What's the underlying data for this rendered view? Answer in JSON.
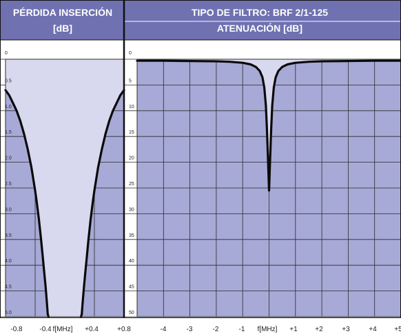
{
  "colors": {
    "header_bg": "#6f71b1",
    "plot_bg": "#a7a9d6",
    "passband": "#d8d9ee",
    "grid": "#2b2b2b",
    "curve": "#0a0a0a",
    "header_text": "#ffffff"
  },
  "headers": {
    "left_title_1": "PÉRDIDA INSERCIÓN",
    "left_title_2": "[dB]",
    "right_title_1": "TIPO DE FILTRO: BRF 2/1-125",
    "right_title_2": "ATENUACIÓN [dB]"
  },
  "chart_data": [
    {
      "type": "line",
      "title": "PÉRDIDA INSERCIÓN [dB]",
      "xlabel": "f[MHz]",
      "ylabel": "",
      "xlim": [
        -0.8,
        0.8
      ],
      "ylim": [
        0,
        5.0
      ],
      "y_inverted": true,
      "grid": true,
      "y_tick_labels": [
        "0",
        "0.5",
        "1.0",
        "1.5",
        "2.0",
        "2.5",
        "3.0",
        "3.5",
        "4.0",
        "4.5",
        "5.0"
      ],
      "x_tick_labels": [
        "-0.8",
        "-0.4",
        "f[MHz]",
        "+0.4",
        "+0.8"
      ],
      "series": [
        {
          "x": [
            -0.8,
            -0.75,
            -0.7,
            -0.65,
            -0.6,
            -0.55,
            -0.5,
            -0.45,
            -0.4,
            -0.38,
            -0.35,
            -0.32,
            -0.3,
            -0.28,
            -0.26,
            -0.24,
            -0.23,
            -0.22
          ],
          "y": [
            0.6,
            0.7,
            0.85,
            1.0,
            1.2,
            1.45,
            1.75,
            2.1,
            2.55,
            2.75,
            3.1,
            3.5,
            3.8,
            4.1,
            4.4,
            4.75,
            4.95,
            5.0
          ]
        },
        {
          "x": [
            0.22,
            0.23,
            0.24,
            0.26,
            0.28,
            0.3,
            0.32,
            0.35,
            0.38,
            0.4,
            0.45,
            0.5,
            0.55,
            0.6,
            0.65,
            0.7,
            0.75,
            0.8
          ],
          "y": [
            5.0,
            4.95,
            4.75,
            4.4,
            4.1,
            3.8,
            3.5,
            3.1,
            2.75,
            2.55,
            2.1,
            1.75,
            1.45,
            1.2,
            1.0,
            0.85,
            0.7,
            0.6
          ]
        }
      ]
    },
    {
      "type": "line",
      "title": "ATENUACIÓN [dB]",
      "xlabel": "f[MHz]",
      "ylabel": "",
      "xlim": [
        -5,
        5
      ],
      "ylim": [
        0,
        50
      ],
      "y_inverted": true,
      "grid": true,
      "y_tick_labels": [
        "0",
        "5",
        "10",
        "15",
        "20",
        "25",
        "30",
        "35",
        "40",
        "45",
        "50"
      ],
      "x_tick_labels": [
        "-4",
        "-3",
        "-2",
        "-1",
        "f[MHz]",
        "+1",
        "+2",
        "+3",
        "+4",
        "+5"
      ],
      "series": [
        {
          "x": [
            -5,
            -4,
            -3,
            -2,
            -1.5,
            -1.0,
            -0.7,
            -0.5,
            -0.35,
            -0.25,
            -0.18,
            -0.12,
            -0.08,
            -0.04,
            0,
            0.04,
            0.08,
            0.12,
            0.18,
            0.25,
            0.35,
            0.5,
            0.7,
            1.0,
            1.5,
            2,
            3,
            4,
            5
          ],
          "y": [
            0.3,
            0.3,
            0.35,
            0.4,
            0.5,
            0.7,
            1.0,
            1.5,
            2.3,
            3.5,
            5.5,
            9.0,
            13.5,
            19.5,
            25.5,
            19.5,
            13.5,
            9.0,
            5.5,
            3.5,
            2.3,
            1.5,
            1.0,
            0.7,
            0.5,
            0.4,
            0.35,
            0.3,
            0.3
          ]
        }
      ]
    }
  ]
}
